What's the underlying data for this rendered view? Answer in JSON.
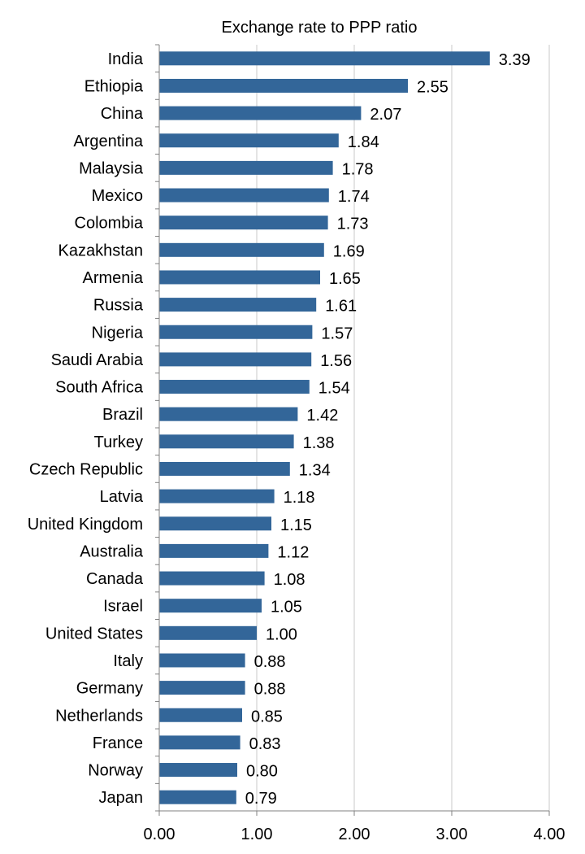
{
  "chart_data": {
    "type": "bar",
    "orientation": "horizontal",
    "title": "Exchange rate to PPP ratio",
    "xlabel": "",
    "ylabel": "",
    "xlim": [
      0,
      4
    ],
    "x_ticks": [
      0,
      1,
      2,
      3,
      4
    ],
    "x_tick_labels": [
      "0.00",
      "1.00",
      "2.00",
      "3.00",
      "4.00"
    ],
    "grid": "vertical",
    "legend": "none",
    "categories": [
      "India",
      "Ethiopia",
      "China",
      "Argentina",
      "Malaysia",
      "Mexico",
      "Colombia",
      "Kazakhstan",
      "Armenia",
      "Russia",
      "Nigeria",
      "Saudi Arabia",
      "South Africa",
      "Brazil",
      "Turkey",
      "Czech Republic",
      "Latvia",
      "United Kingdom",
      "Australia",
      "Canada",
      "Israel",
      "United States",
      "Italy",
      "Germany",
      "Netherlands",
      "France",
      "Norway",
      "Japan"
    ],
    "values": [
      3.39,
      2.55,
      2.07,
      1.84,
      1.78,
      1.74,
      1.73,
      1.69,
      1.65,
      1.61,
      1.57,
      1.56,
      1.54,
      1.42,
      1.38,
      1.34,
      1.18,
      1.15,
      1.12,
      1.08,
      1.05,
      1.0,
      0.88,
      0.88,
      0.85,
      0.83,
      0.8,
      0.79
    ],
    "value_labels": [
      "3.39",
      "2.55",
      "2.07",
      "1.84",
      "1.78",
      "1.74",
      "1.73",
      "1.69",
      "1.65",
      "1.61",
      "1.57",
      "1.56",
      "1.54",
      "1.42",
      "1.38",
      "1.34",
      "1.18",
      "1.15",
      "1.12",
      "1.08",
      "1.05",
      "1.00",
      "0.88",
      "0.88",
      "0.85",
      "0.83",
      "0.80",
      "0.79"
    ],
    "colors": {
      "bar": "#336699",
      "grid": "#c8c8c8",
      "axis": "#808080",
      "text": "#000000"
    }
  }
}
